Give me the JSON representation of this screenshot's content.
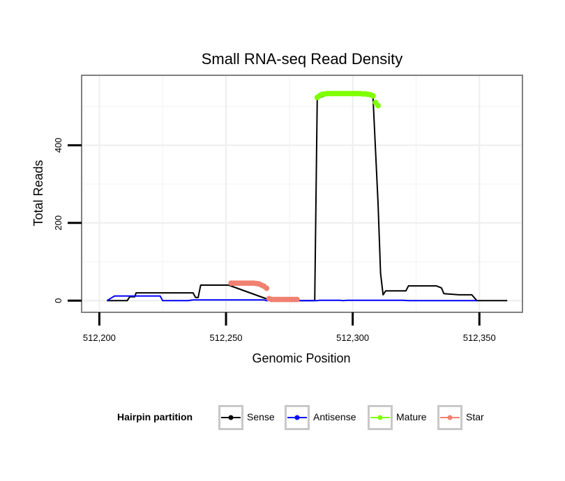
{
  "chart_data": {
    "type": "line",
    "title": "Small RNA-seq Read Density",
    "xlabel": "Genomic Position",
    "ylabel": "Total Reads",
    "xlim": [
      512193,
      512367
    ],
    "ylim": [
      -30,
      580
    ],
    "x_ticks": [
      {
        "value": 512200,
        "label": "512,200"
      },
      {
        "value": 512250,
        "label": "512,250"
      },
      {
        "value": 512300,
        "label": "512,300"
      },
      {
        "value": 512350,
        "label": "512,350"
      }
    ],
    "y_ticks": [
      {
        "value": 0,
        "label": "0"
      },
      {
        "value": 200,
        "label": "200"
      },
      {
        "value": 400,
        "label": "400"
      }
    ],
    "y_minor_gridlines": [
      100,
      300,
      500
    ],
    "x_minor_gridlines": [
      512225,
      512275,
      512325
    ],
    "grid": true,
    "legend": {
      "title": "Hairpin partition",
      "position": "bottom",
      "entries": [
        {
          "name": "Sense",
          "color": "#000000"
        },
        {
          "name": "Antisense",
          "color": "#0000ff"
        },
        {
          "name": "Mature",
          "color": "#7fff00"
        },
        {
          "name": "Star",
          "color": "#f08070"
        }
      ]
    },
    "series": [
      {
        "name": "Sense",
        "color": "#000000",
        "style": "line",
        "points": [
          [
            512203,
            0
          ],
          [
            512211,
            0
          ],
          [
            512212,
            10
          ],
          [
            512214,
            10
          ],
          [
            512214.5,
            20
          ],
          [
            512231,
            20
          ],
          [
            512237,
            20
          ],
          [
            512238,
            8
          ],
          [
            512239,
            8
          ],
          [
            512240,
            40
          ],
          [
            512251,
            40
          ],
          [
            512268,
            0
          ],
          [
            512285,
            0
          ],
          [
            512286,
            520
          ],
          [
            512290,
            530
          ],
          [
            512306,
            530
          ],
          [
            512308,
            525
          ],
          [
            512310,
            250
          ],
          [
            512311,
            70
          ],
          [
            512312,
            15
          ],
          [
            512313,
            25
          ],
          [
            512321,
            25
          ],
          [
            512322,
            38
          ],
          [
            512333,
            38
          ],
          [
            512335,
            33
          ],
          [
            512336,
            18
          ],
          [
            512342,
            15
          ],
          [
            512347,
            15
          ],
          [
            512349,
            0
          ],
          [
            512361,
            0
          ]
        ]
      },
      {
        "name": "Antisense",
        "color": "#0000ff",
        "style": "line",
        "points": [
          [
            512203,
            0
          ],
          [
            512205,
            8
          ],
          [
            512206,
            12
          ],
          [
            512224,
            12
          ],
          [
            512225,
            0
          ],
          [
            512235,
            0
          ],
          [
            512237,
            2
          ],
          [
            512265,
            2
          ],
          [
            512266,
            0
          ],
          [
            512286,
            0
          ],
          [
            512287,
            1
          ],
          [
            512295,
            1
          ],
          [
            512296,
            0
          ],
          [
            512298,
            1
          ],
          [
            512320,
            1
          ],
          [
            512322,
            0
          ],
          [
            512349,
            0
          ]
        ]
      },
      {
        "name": "Mature",
        "color": "#7fff00",
        "style": "points",
        "points": [
          [
            512286,
            523
          ],
          [
            512287,
            528
          ],
          [
            512288,
            531
          ],
          [
            512289,
            532
          ],
          [
            512290,
            533
          ],
          [
            512291,
            533
          ],
          [
            512292,
            533
          ],
          [
            512293,
            533
          ],
          [
            512294,
            533
          ],
          [
            512295,
            533
          ],
          [
            512296,
            533
          ],
          [
            512297,
            533
          ],
          [
            512298,
            533
          ],
          [
            512299,
            533
          ],
          [
            512300,
            533
          ],
          [
            512301,
            533
          ],
          [
            512302,
            533
          ],
          [
            512303,
            533
          ],
          [
            512304,
            532
          ],
          [
            512305,
            532
          ],
          [
            512306,
            531
          ],
          [
            512307,
            530
          ],
          [
            512308,
            527
          ],
          [
            512309,
            510
          ],
          [
            512310,
            502
          ]
        ]
      },
      {
        "name": "Star",
        "color": "#f08070",
        "style": "points",
        "points": [
          [
            512252,
            45
          ],
          [
            512253,
            45
          ],
          [
            512254,
            45
          ],
          [
            512255,
            45
          ],
          [
            512256,
            45
          ],
          [
            512257,
            45
          ],
          [
            512258,
            45
          ],
          [
            512259,
            45
          ],
          [
            512260,
            45
          ],
          [
            512261,
            45
          ],
          [
            512262,
            44
          ],
          [
            512263,
            43
          ],
          [
            512264,
            40
          ],
          [
            512265,
            37
          ],
          [
            512266,
            32
          ],
          [
            512267,
            5
          ],
          [
            512268,
            3
          ],
          [
            512269,
            3
          ],
          [
            512270,
            3
          ],
          [
            512271,
            3
          ],
          [
            512272,
            3
          ],
          [
            512273,
            3
          ],
          [
            512274,
            3
          ],
          [
            512275,
            3
          ],
          [
            512276,
            3
          ],
          [
            512277,
            3
          ],
          [
            512278,
            3
          ]
        ]
      }
    ]
  }
}
